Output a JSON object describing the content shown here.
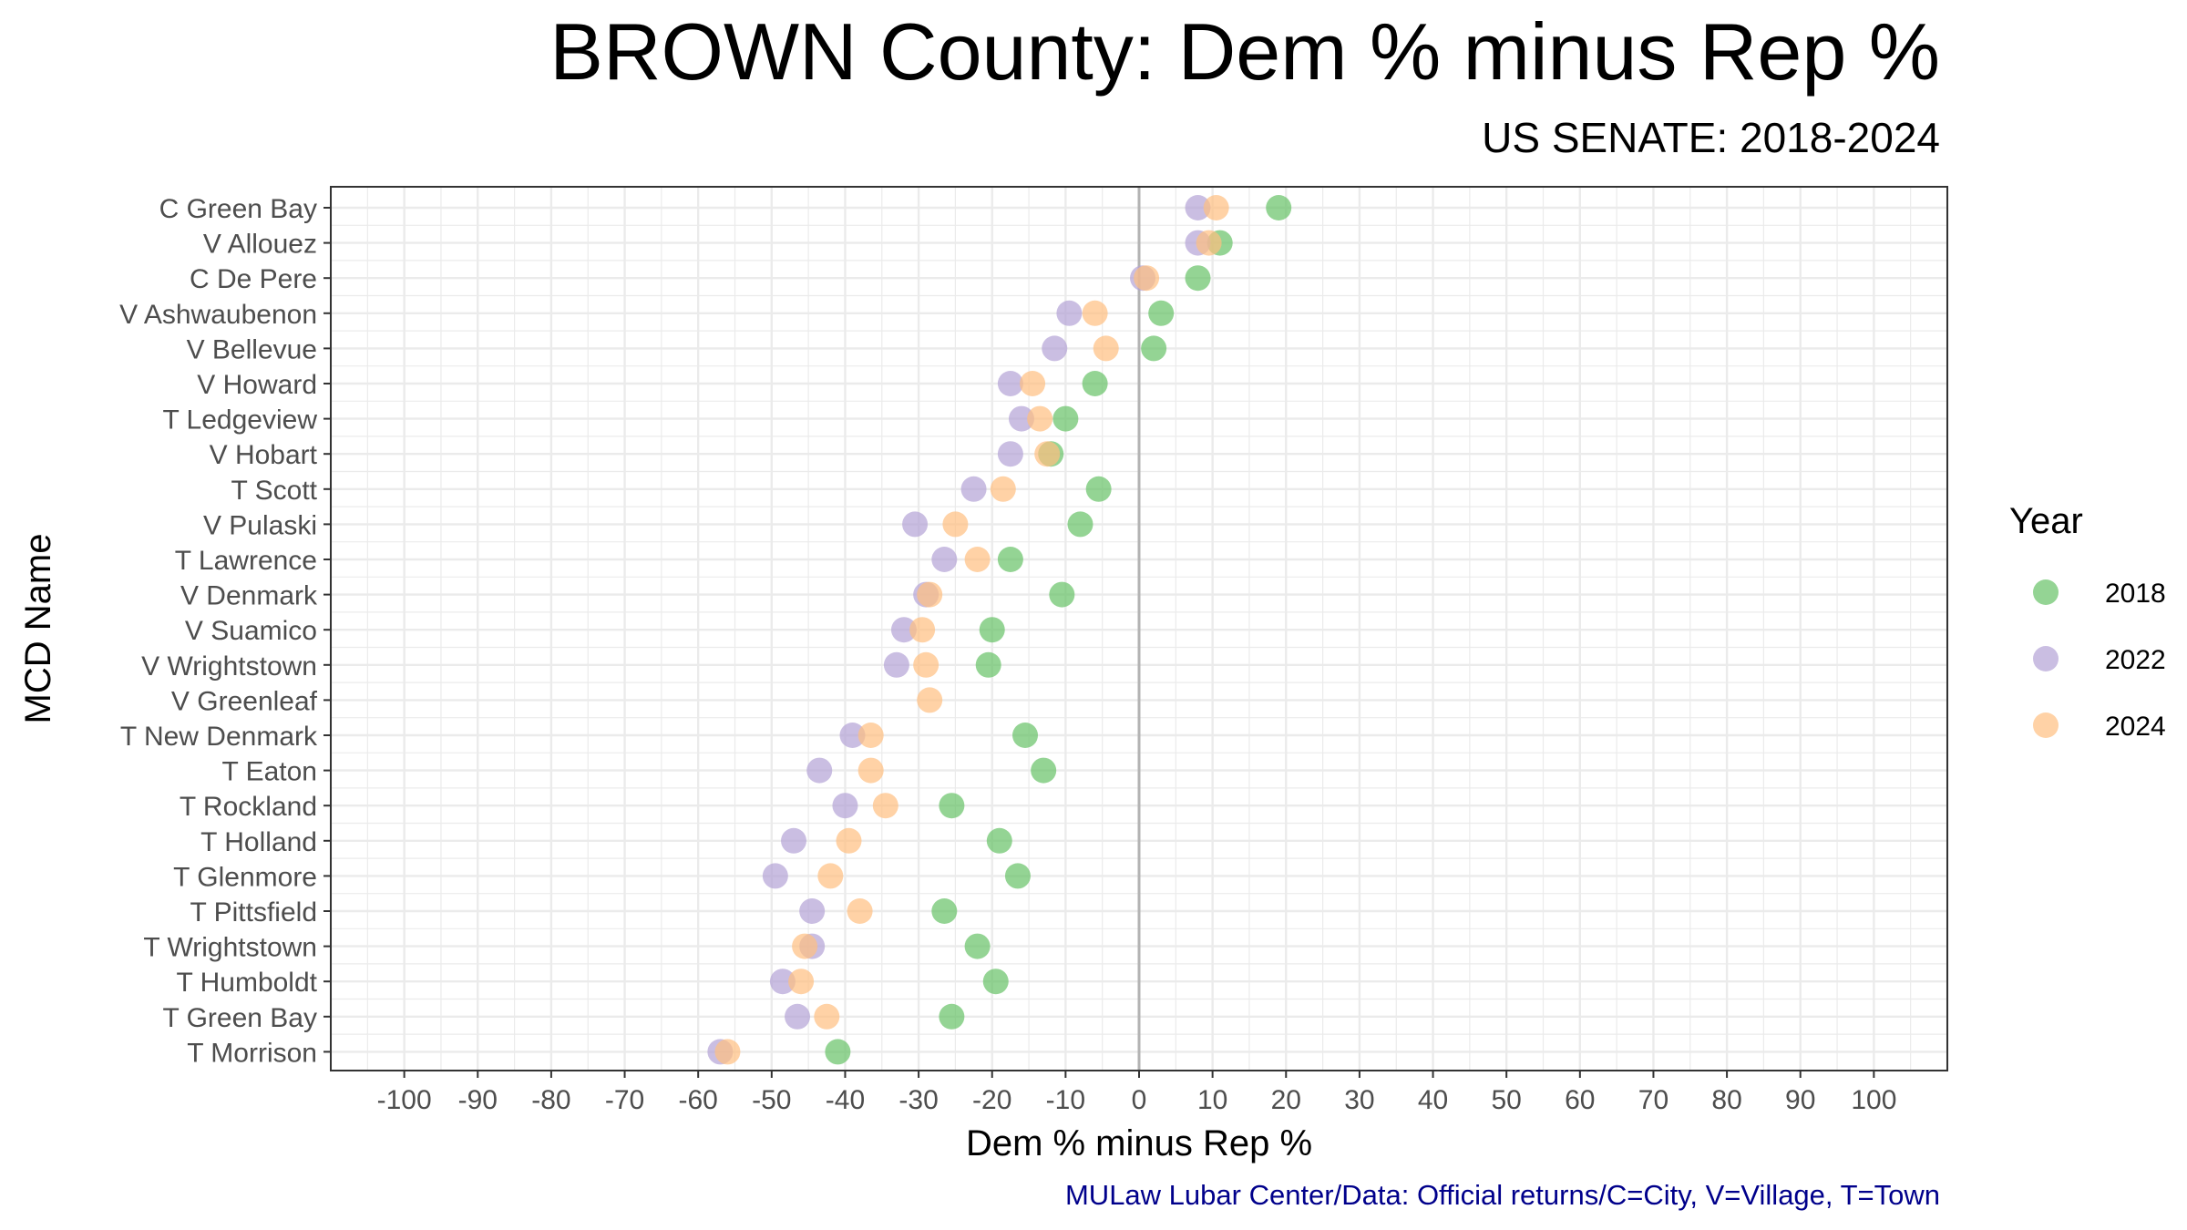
{
  "title": "BROWN County: Dem % minus Rep %",
  "subtitle": "US SENATE: 2018-2024",
  "caption": "MULaw Lubar Center/Data: Official returns/C=City, V=Village, T=Town",
  "chart_data": {
    "type": "scatter",
    "xlabel": "Dem % minus Rep %",
    "ylabel": "MCD Name",
    "xlim": [
      -110,
      110
    ],
    "x_ticks": [
      -100,
      -90,
      -80,
      -70,
      -60,
      -50,
      -40,
      -30,
      -20,
      -10,
      0,
      10,
      20,
      30,
      40,
      50,
      60,
      70,
      80,
      90,
      100
    ],
    "grid": true,
    "reference_line": 0,
    "legend": {
      "title": "Year",
      "position": "right"
    },
    "categories": [
      "C Green Bay",
      "V Allouez",
      "C De Pere",
      "V Ashwaubenon",
      "V Bellevue",
      "V Howard",
      "T Ledgeview",
      "V Hobart",
      "T Scott",
      "V Pulaski",
      "T Lawrence",
      "V Denmark",
      "V Suamico",
      "V Wrightstown",
      "V Greenleaf",
      "T New Denmark",
      "T Eaton",
      "T Rockland",
      "T Holland",
      "T Glenmore",
      "T Pittsfield",
      "T Wrightstown",
      "T Humboldt",
      "T Green Bay",
      "T Morrison"
    ],
    "series": [
      {
        "name": "2018",
        "color": "#66c266",
        "values": [
          19,
          11,
          8,
          3,
          2,
          -6,
          -10,
          -12,
          -5.5,
          -8,
          -17.5,
          -10.5,
          -20,
          -20.5,
          null,
          -15.5,
          -13,
          -25.5,
          -19,
          -16.5,
          -26.5,
          -22,
          -19.5,
          -25.5,
          -41
        ]
      },
      {
        "name": "2022",
        "color": "#b3a3d6",
        "values": [
          8,
          8,
          0.5,
          -9.5,
          -11.5,
          -17.5,
          -16,
          -17.5,
          -22.5,
          -30.5,
          -26.5,
          -29,
          -32,
          -33,
          null,
          -39,
          -43.5,
          -40,
          -47,
          -49.5,
          -44.5,
          -44.5,
          -48.5,
          -46.5,
          -57
        ]
      },
      {
        "name": "2024",
        "color": "#ffbf80",
        "values": [
          10.5,
          9.5,
          1,
          -6,
          -4.5,
          -14.5,
          -13.5,
          -12.5,
          -18.5,
          -25,
          -22,
          -28.5,
          -29.5,
          -29,
          -28.5,
          -36.5,
          -36.5,
          -34.5,
          -39.5,
          -42,
          -38,
          -45.5,
          -46,
          -42.5,
          -56
        ]
      }
    ]
  }
}
